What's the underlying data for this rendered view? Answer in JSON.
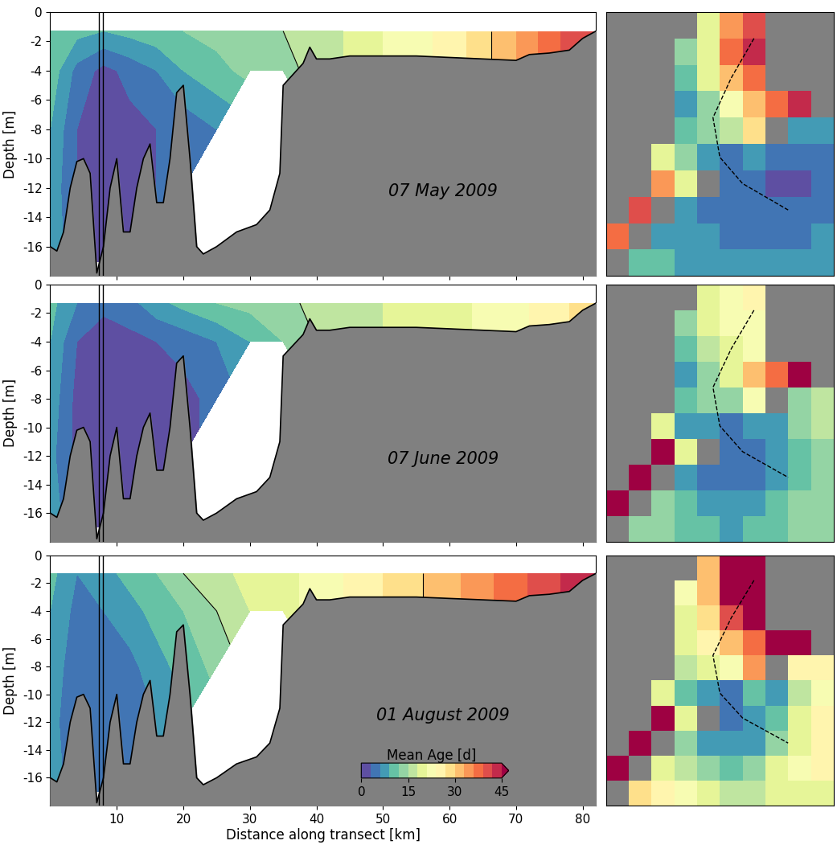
{
  "chart_data": [
    {
      "type": "contour",
      "title": "07 May 2009",
      "ylabel": "Depth [m]",
      "tick_labels": "y",
      "xlim": [
        0,
        82
      ],
      "ylim": [
        -18,
        0
      ],
      "xticks": [
        10,
        20,
        30,
        40,
        50,
        60,
        70,
        80
      ],
      "yticks": [
        -16,
        -14,
        -12,
        -10,
        -8,
        -6,
        -4,
        -2,
        0
      ],
      "x": [
        0,
        4,
        8,
        12,
        16,
        20,
        25,
        30,
        35,
        40,
        50,
        60,
        70,
        80,
        82
      ],
      "depth": [
        -1.3,
        -4,
        -8,
        -12,
        -17
      ],
      "cells": [
        [
          12,
          10,
          9,
          10,
          11,
          12,
          13,
          14,
          15,
          16,
          21,
          25,
          33,
          42,
          42
        ],
        [
          11,
          5,
          2,
          4,
          6,
          9,
          11,
          13,
          14,
          16,
          21,
          25,
          33,
          42,
          42
        ],
        [
          9,
          3,
          1,
          2,
          3,
          4,
          6,
          null,
          null,
          16,
          21,
          25,
          33,
          42,
          42
        ],
        [
          8,
          3,
          1,
          2,
          3,
          4,
          null,
          null,
          null,
          16,
          21,
          25,
          33,
          42,
          42
        ],
        [
          9,
          3,
          1,
          2,
          3,
          4,
          null,
          null,
          null,
          16,
          21,
          25,
          33,
          42,
          42
        ]
      ],
      "contours": [
        15,
        30
      ],
      "vlines": [
        7.3,
        7.9
      ],
      "bottom": {
        "x": [
          0,
          1,
          2,
          3,
          4,
          5,
          6,
          7,
          8,
          9,
          10,
          11,
          12,
          13,
          14,
          15,
          16,
          17,
          18,
          19,
          20,
          21,
          22,
          23,
          25,
          28,
          31,
          33,
          34.5,
          35,
          36,
          38,
          39,
          40,
          42,
          45,
          50,
          55,
          60,
          65,
          70,
          72,
          75,
          78,
          80,
          82
        ],
        "depth": [
          -16,
          -16.3,
          -15,
          -12,
          -10.2,
          -10,
          -11,
          -17.8,
          -16,
          -12,
          -10,
          -15,
          -15,
          -12,
          -10,
          -9,
          -13,
          -13,
          -10,
          -5.5,
          -5,
          -10,
          -16,
          -16.5,
          -16,
          -15,
          -14.5,
          -13.5,
          -11,
          -5,
          -4.5,
          -3.5,
          -2.4,
          -3.2,
          -3.2,
          -3,
          -3,
          -3,
          -3.1,
          -3.2,
          -3.3,
          -2.9,
          -2.8,
          -2.6,
          -1.8,
          -1.3
        ]
      }
    },
    {
      "type": "contour",
      "title": "07 June 2009",
      "ylabel": "Depth [m]",
      "tick_labels": "y",
      "xlim": [
        0,
        82
      ],
      "ylim": [
        -18,
        0
      ],
      "xticks": [
        10,
        20,
        30,
        40,
        50,
        60,
        70,
        80
      ],
      "yticks": [
        -16,
        -14,
        -12,
        -10,
        -8,
        -6,
        -4,
        -2,
        0
      ],
      "x": [
        0,
        4,
        8,
        12,
        16,
        20,
        25,
        30,
        35,
        40,
        50,
        60,
        70,
        80,
        82
      ],
      "depth": [
        -1.3,
        -4,
        -8,
        -12,
        -17
      ],
      "cells": [
        [
          10,
          6,
          4,
          5,
          8,
          10,
          12,
          13,
          14,
          16,
          18,
          20,
          23,
          28,
          28
        ],
        [
          9,
          3,
          1,
          2,
          3,
          4,
          6,
          9,
          12,
          15,
          18,
          20,
          23,
          28,
          28
        ],
        [
          8,
          2,
          1,
          1,
          1,
          2,
          4,
          null,
          null,
          15,
          18,
          20,
          23,
          28,
          28
        ],
        [
          7,
          2,
          1,
          1,
          1,
          2,
          null,
          null,
          null,
          15,
          18,
          20,
          23,
          28,
          28
        ],
        [
          9,
          2,
          1,
          1,
          1,
          2,
          null,
          null,
          null,
          15,
          18,
          20,
          23,
          28,
          28
        ]
      ],
      "contours": [
        15,
        30
      ],
      "vlines": [
        7.3,
        7.9
      ],
      "bottom": {
        "x": [
          0,
          1,
          2,
          3,
          4,
          5,
          6,
          7,
          8,
          9,
          10,
          11,
          12,
          13,
          14,
          15,
          16,
          17,
          18,
          19,
          20,
          21,
          22,
          23,
          25,
          28,
          31,
          33,
          34.5,
          35,
          36,
          38,
          39,
          40,
          42,
          45,
          50,
          55,
          60,
          65,
          70,
          72,
          75,
          78,
          80,
          82
        ],
        "depth": [
          -16,
          -16.3,
          -15,
          -12,
          -10.2,
          -10,
          -11,
          -17.8,
          -16,
          -12,
          -10,
          -15,
          -15,
          -12,
          -10,
          -9,
          -13,
          -13,
          -10,
          -5.5,
          -5,
          -10,
          -16,
          -16.5,
          -16,
          -15,
          -14.5,
          -13.5,
          -11,
          -5,
          -4.5,
          -3.5,
          -2.4,
          -3.2,
          -3.2,
          -3,
          -3,
          -3,
          -3.1,
          -3.2,
          -3.3,
          -2.9,
          -2.8,
          -2.6,
          -1.8,
          -1.3
        ]
      }
    },
    {
      "type": "contour",
      "title": "01 August 2009",
      "ylabel": "Depth [m]",
      "xlabel": "Distance along transect [km]",
      "xlim": [
        0,
        82
      ],
      "ylim": [
        -18,
        0
      ],
      "xticks": [
        10,
        20,
        30,
        40,
        50,
        60,
        70,
        80
      ],
      "yticks": [
        -16,
        -14,
        -12,
        -10,
        -8,
        -6,
        -4,
        -2,
        0
      ],
      "x": [
        0,
        4,
        8,
        12,
        16,
        20,
        25,
        30,
        35,
        40,
        50,
        60,
        70,
        80,
        82
      ],
      "depth": [
        -1.3,
        -4,
        -8,
        -12,
        -17
      ],
      "cells": [
        [
          10,
          6,
          8,
          10,
          12,
          15,
          17,
          19,
          20,
          22,
          27,
          32,
          38,
          44,
          44
        ],
        [
          9,
          5,
          6,
          8,
          10,
          12,
          15,
          18,
          20,
          22,
          27,
          32,
          38,
          44,
          44
        ],
        [
          8,
          4,
          3,
          5,
          8,
          10,
          13,
          null,
          null,
          22,
          27,
          32,
          38,
          44,
          44
        ],
        [
          7,
          4,
          3,
          4,
          6,
          8,
          null,
          null,
          null,
          22,
          27,
          32,
          38,
          44,
          44
        ],
        [
          8,
          4,
          3,
          4,
          6,
          8,
          null,
          null,
          null,
          22,
          27,
          32,
          38,
          44,
          44
        ]
      ],
      "contours": [
        15,
        30
      ],
      "vlines": [
        7.3,
        7.9
      ],
      "bottom": {
        "x": [
          0,
          1,
          2,
          3,
          4,
          5,
          6,
          7,
          8,
          9,
          10,
          11,
          12,
          13,
          14,
          15,
          16,
          17,
          18,
          19,
          20,
          21,
          22,
          23,
          25,
          28,
          31,
          33,
          34.5,
          35,
          36,
          38,
          39,
          40,
          42,
          45,
          50,
          55,
          60,
          65,
          70,
          72,
          75,
          78,
          80,
          82
        ],
        "depth": [
          -16,
          -16.3,
          -15,
          -12,
          -10.2,
          -10,
          -11,
          -17.8,
          -16,
          -12,
          -10,
          -15,
          -15,
          -12,
          -10,
          -9,
          -13,
          -13,
          -10,
          -5.5,
          -5,
          -10,
          -16,
          -16.5,
          -16,
          -15,
          -14.5,
          -13.5,
          -11,
          -5,
          -4.5,
          -3.5,
          -2.4,
          -3.2,
          -3.2,
          -3,
          -3,
          -3,
          -3.1,
          -3.2,
          -3.3,
          -2.9,
          -2.8,
          -2.6,
          -1.8,
          -1.3
        ]
      },
      "colorbar": {
        "label": "Mean Age [d]",
        "range": [
          0,
          45
        ],
        "ticks": [
          0,
          15,
          30,
          45
        ],
        "levels": [
          0,
          3,
          6,
          9,
          12,
          15,
          18,
          21,
          24,
          27,
          30,
          33,
          36,
          39,
          42,
          45
        ]
      }
    },
    {
      "type": "map",
      "tick_labels": false,
      "cells": [
        [
          null,
          null,
          null,
          null,
          18,
          35,
          40,
          null,
          null,
          null
        ],
        [
          null,
          null,
          null,
          12,
          20,
          38,
          42,
          null,
          null,
          null
        ],
        [
          null,
          null,
          null,
          10,
          18,
          30,
          36,
          null,
          null,
          null
        ],
        [
          null,
          null,
          null,
          8,
          14,
          22,
          30,
          36,
          42,
          null
        ],
        [
          null,
          null,
          null,
          10,
          12,
          15,
          28,
          null,
          6,
          8
        ],
        [
          null,
          null,
          18,
          12,
          8,
          4,
          6,
          4,
          3,
          4
        ],
        [
          null,
          null,
          35,
          20,
          null,
          3,
          4,
          2,
          2,
          3
        ],
        [
          null,
          40,
          null,
          6,
          5,
          5,
          4,
          3,
          3,
          4
        ],
        [
          38,
          null,
          8,
          7,
          6,
          5,
          4,
          4,
          5,
          6
        ],
        [
          null,
          10,
          9,
          8,
          7,
          6,
          6,
          7,
          8,
          8
        ]
      ],
      "transect": {
        "col": [
          6,
          5,
          4.2,
          4.5,
          5.5,
          7.5
        ],
        "row": [
          0.5,
          2,
          3.5,
          5,
          6,
          7
        ]
      }
    },
    {
      "type": "map",
      "tick_labels": false,
      "cells": [
        [
          null,
          null,
          null,
          null,
          18,
          22,
          24,
          null,
          null,
          null
        ],
        [
          null,
          null,
          null,
          12,
          18,
          22,
          22,
          null,
          null,
          null
        ],
        [
          null,
          null,
          null,
          10,
          16,
          20,
          22,
          null,
          null,
          null
        ],
        [
          null,
          null,
          null,
          8,
          14,
          18,
          30,
          38,
          46,
          null
        ],
        [
          null,
          null,
          null,
          10,
          12,
          12,
          22,
          null,
          14,
          16
        ],
        [
          null,
          null,
          18,
          8,
          6,
          3,
          6,
          8,
          12,
          16
        ],
        [
          null,
          null,
          46,
          18,
          null,
          3,
          4,
          6,
          10,
          14
        ],
        [
          null,
          46,
          null,
          8,
          5,
          4,
          5,
          8,
          10,
          12
        ],
        [
          46,
          null,
          14,
          10,
          8,
          6,
          8,
          10,
          12,
          12
        ],
        [
          null,
          14,
          12,
          10,
          9,
          8,
          9,
          10,
          12,
          12
        ]
      ],
      "transect": {
        "col": [
          6,
          5,
          4.2,
          4.5,
          5.5,
          7.5
        ],
        "row": [
          0.5,
          2,
          3.5,
          5,
          6,
          7
        ]
      }
    },
    {
      "type": "map",
      "tick_labels": false,
      "cells": [
        [
          null,
          null,
          null,
          null,
          30,
          45,
          46,
          null,
          null,
          null
        ],
        [
          null,
          null,
          null,
          22,
          30,
          46,
          46,
          null,
          null,
          null
        ],
        [
          null,
          null,
          null,
          20,
          28,
          40,
          46,
          null,
          null,
          null
        ],
        [
          null,
          null,
          null,
          18,
          24,
          30,
          38,
          46,
          46,
          null
        ],
        [
          null,
          null,
          null,
          15,
          18,
          22,
          35,
          null,
          25,
          25
        ],
        [
          null,
          null,
          20,
          10,
          8,
          5,
          10,
          8,
          15,
          22
        ],
        [
          null,
          null,
          46,
          18,
          null,
          4,
          6,
          10,
          18,
          25
        ],
        [
          null,
          46,
          null,
          12,
          8,
          6,
          8,
          14,
          20,
          26
        ],
        [
          46,
          null,
          18,
          16,
          12,
          10,
          12,
          18,
          22,
          24
        ],
        [
          null,
          28,
          26,
          22,
          18,
          16,
          16,
          18,
          20,
          20
        ]
      ],
      "transect": {
        "col": [
          6,
          5,
          4.2,
          4.5,
          5.5,
          7.5
        ],
        "row": [
          0.5,
          2,
          3.5,
          5,
          6,
          7
        ]
      }
    }
  ]
}
